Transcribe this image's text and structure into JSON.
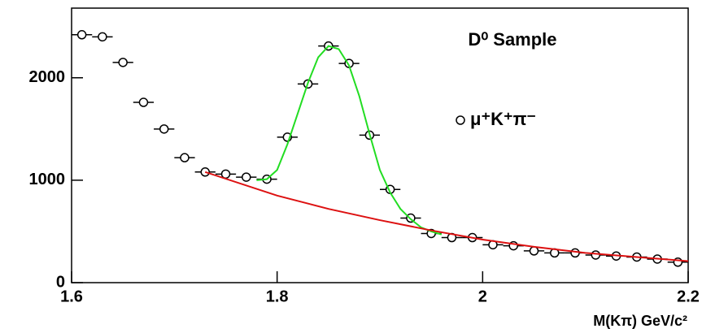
{
  "chart_data": {
    "type": "scatter",
    "title": "D⁰ Sample",
    "x_label": "M(Kπ) GeV/c²",
    "xlim": [
      1.6,
      2.2
    ],
    "ylim": [
      0,
      2680
    ],
    "xticks": [
      1.6,
      1.8,
      2,
      2.2
    ],
    "yticks": [
      0,
      1000,
      2000
    ],
    "series": [
      {
        "name": "μ⁺K⁺π⁻",
        "color": "#000000",
        "marker": "open-circle",
        "xerr": 0.01,
        "x": [
          1.61,
          1.63,
          1.65,
          1.67,
          1.69,
          1.71,
          1.73,
          1.75,
          1.77,
          1.79,
          1.81,
          1.83,
          1.85,
          1.87,
          1.89,
          1.91,
          1.93,
          1.95,
          1.97,
          1.99,
          2.01,
          2.03,
          2.05,
          2.07,
          2.09,
          2.11,
          2.13,
          2.15,
          2.17,
          2.19
        ],
        "values": [
          2420,
          2400,
          2150,
          1760,
          1500,
          1220,
          1080,
          1060,
          1030,
          1010,
          1420,
          1940,
          2310,
          2140,
          1440,
          910,
          630,
          480,
          440,
          440,
          370,
          360,
          310,
          290,
          290,
          270,
          260,
          250,
          230,
          200
        ]
      },
      {
        "type": "line",
        "color": "#22dd22",
        "x": [
          1.78,
          1.79,
          1.8,
          1.81,
          1.82,
          1.83,
          1.84,
          1.85,
          1.86,
          1.87,
          1.88,
          1.89,
          1.9,
          1.91,
          1.92,
          1.93,
          1.94,
          1.95,
          1.96
        ],
        "values": [
          1000,
          1010,
          1100,
          1350,
          1650,
          1950,
          2200,
          2310,
          2280,
          2120,
          1820,
          1450,
          1100,
          880,
          720,
          620,
          540,
          500,
          470
        ]
      },
      {
        "type": "line",
        "color": "#dd1111",
        "x": [
          1.73,
          1.8,
          1.85,
          1.9,
          1.95,
          2.0,
          2.05,
          2.1,
          2.15,
          2.2
        ],
        "values": [
          1080,
          850,
          720,
          610,
          510,
          420,
          350,
          290,
          250,
          210
        ]
      }
    ]
  }
}
